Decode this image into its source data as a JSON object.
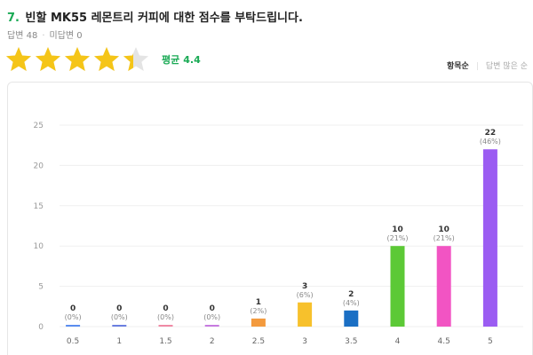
{
  "question": {
    "number": "7.",
    "title": "빈할 MK55 레몬트리 커피에 대한 점수를 부탁드립니다."
  },
  "meta": {
    "answers_label": "답변 48",
    "no_answers_label": "미답변 0"
  },
  "rating": {
    "value": 4.4,
    "max": 5,
    "star_color": "#f5c518",
    "empty_color": "#e4e4e4"
  },
  "average": {
    "label": "평균",
    "value": "4.4"
  },
  "sort": {
    "by_item": "항목순",
    "by_count": "답변 많은 순"
  },
  "chart_data": {
    "type": "bar",
    "categories": [
      "0.5",
      "1",
      "1.5",
      "2",
      "2.5",
      "3",
      "3.5",
      "4",
      "4.5",
      "5"
    ],
    "values": [
      0,
      0,
      0,
      0,
      1,
      3,
      2,
      10,
      10,
      22
    ],
    "percent_labels": [
      "(0%)",
      "(0%)",
      "(0%)",
      "(0%)",
      "(2%)",
      "(6%)",
      "(4%)",
      "(21%)",
      "(21%)",
      "(46%)"
    ],
    "colors": [
      "#5b8def",
      "#6b7fe0",
      "#f08aa5",
      "#c77be0",
      "#f39a3d",
      "#f7c12c",
      "#1a6fc4",
      "#5cc936",
      "#f254c3",
      "#9b5cf2"
    ],
    "ylim": [
      0,
      25
    ],
    "yticks": [
      "0",
      "5",
      "10",
      "15",
      "20",
      "25"
    ],
    "grid": true,
    "title": "",
    "xlabel": "",
    "ylabel": ""
  }
}
